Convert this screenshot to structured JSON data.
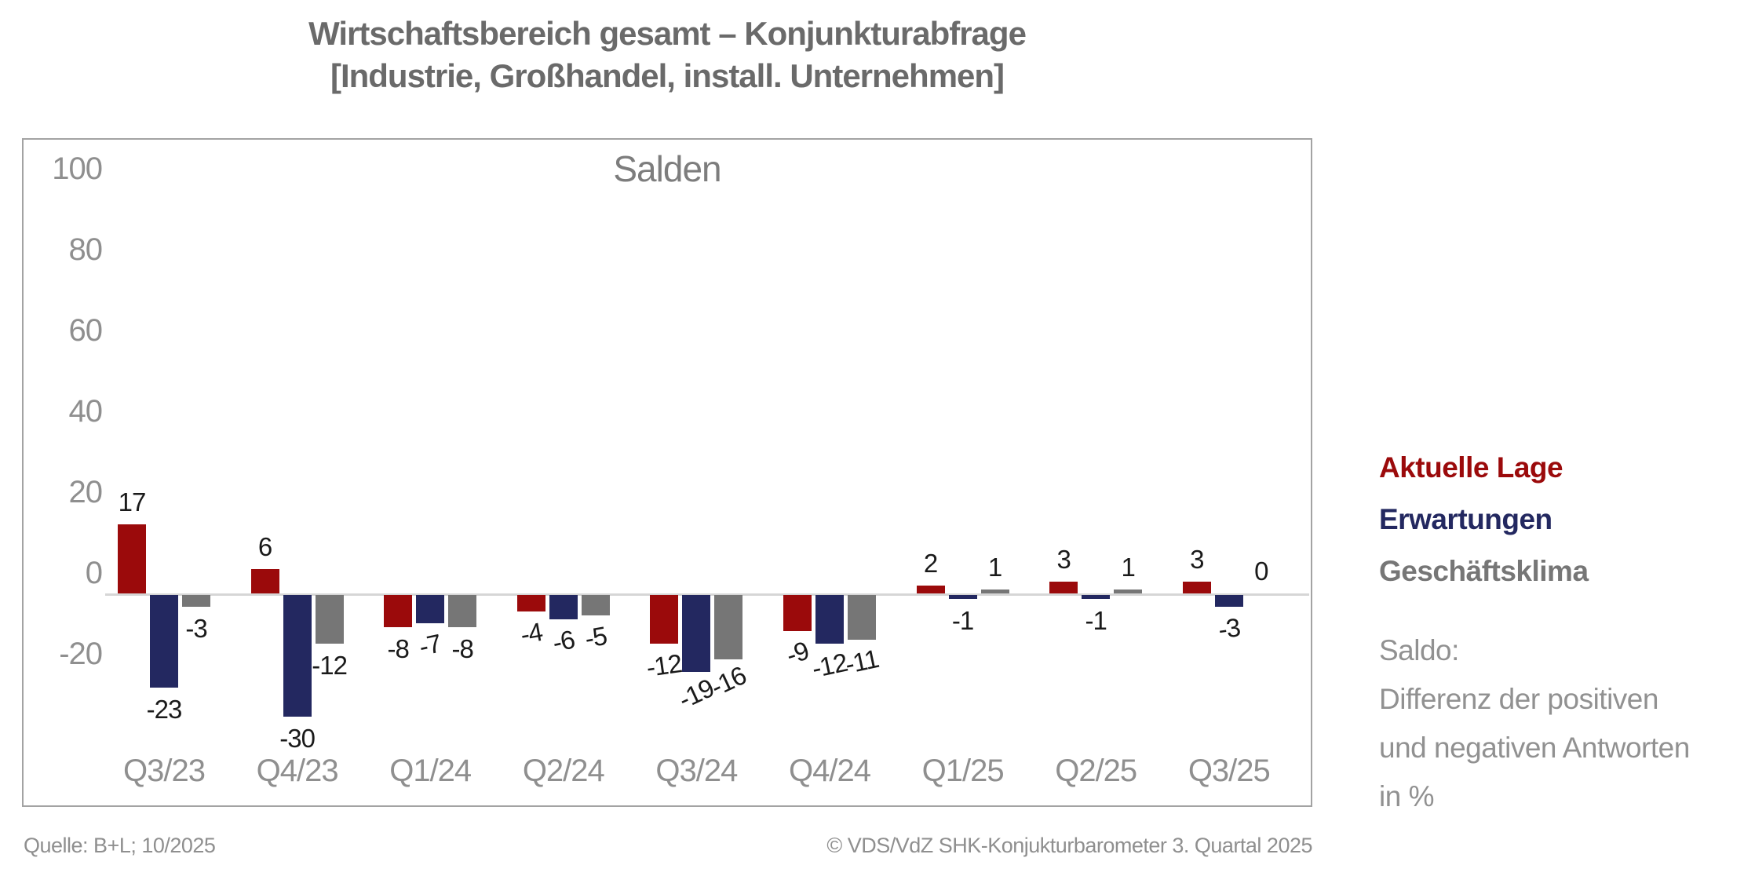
{
  "title": {
    "line1": "Wirtschaftsbereich gesamt – Konjunkturabfrage",
    "line2": "[Industrie, Großhandel, install. Unternehmen]"
  },
  "chart_data": {
    "type": "bar",
    "inner_title": "Salden",
    "categories": [
      "Q3/23",
      "Q4/23",
      "Q1/24",
      "Q2/24",
      "Q3/24",
      "Q4/24",
      "Q1/25",
      "Q2/25",
      "Q3/25"
    ],
    "series": [
      {
        "name": "Aktuelle Lage",
        "color": "#9b0a0b",
        "values": [
          17,
          6,
          -8,
          -4,
          -12,
          -9,
          2,
          3,
          3
        ],
        "label_tilts": [
          0,
          0,
          0,
          10,
          8,
          18,
          0,
          0,
          0
        ]
      },
      {
        "name": "Erwartungen",
        "color": "#232860",
        "values": [
          -23,
          -30,
          -7,
          -6,
          -19,
          -12,
          -1,
          -1,
          -3
        ],
        "label_tilts": [
          0,
          0,
          12,
          12,
          25,
          12,
          0,
          0,
          8
        ]
      },
      {
        "name": "Geschäftsklima",
        "color": "#767676",
        "values": [
          -3,
          -12,
          -8,
          -5,
          -16,
          -11,
          1,
          1,
          0
        ],
        "label_tilts": [
          0,
          0,
          0,
          10,
          25,
          12,
          0,
          0,
          0
        ]
      }
    ],
    "y_ticks": [
      100,
      80,
      60,
      40,
      20,
      0,
      -20
    ],
    "ylim": [
      -55,
      112
    ],
    "grid": false,
    "legend_position": "right",
    "data_labels": true
  },
  "legend": {
    "note_lines": [
      "Saldo:",
      "Differenz der positiven",
      "und negativen Antworten",
      "in %"
    ]
  },
  "footer": {
    "source": "Quelle: B+L; 10/2025",
    "copyright": "© VDS/VdZ SHK-Konjukturbarometer 3. Quartal 2025"
  }
}
